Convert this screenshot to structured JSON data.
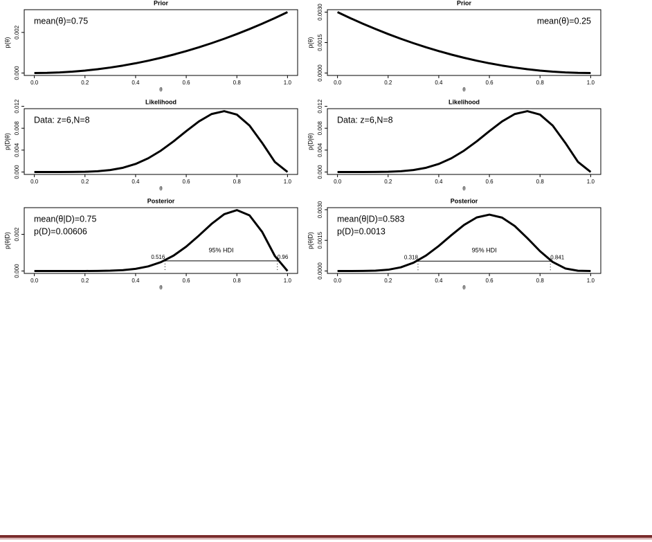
{
  "chart_data": [
    {
      "type": "line",
      "title": "Prior",
      "xlabel": "θ",
      "ylabel": "p(θ)",
      "annotations": [
        "mean(θ)=0.75"
      ],
      "annotation_corner": "left",
      "x": [
        0,
        0.05,
        0.1,
        0.15,
        0.2,
        0.25,
        0.3,
        0.35,
        0.4,
        0.45,
        0.5,
        0.55,
        0.6,
        0.65,
        0.7,
        0.75,
        0.8,
        0.85,
        0.9,
        0.95,
        1
      ],
      "values": [
        0,
        7.5e-06,
        3e-05,
        6.75e-05,
        0.00012,
        0.0001875,
        0.00027,
        0.0003675,
        0.00048,
        0.0006075,
        0.00075,
        0.0009075,
        0.00108,
        0.0012675,
        0.00147,
        0.0016875,
        0.00192,
        0.0021675,
        0.00243,
        0.0027075,
        0.003
      ],
      "color": "#000000",
      "xlim": [
        -0.04,
        1.04
      ],
      "ylim": [
        -0.00012,
        0.00312
      ],
      "xticks": [
        {
          "value": 0,
          "label": "0.0"
        },
        0.2,
        0.4,
        0.6,
        0.8,
        {
          "value": 1,
          "label": "1.0"
        }
      ],
      "yticks": [
        {
          "value": 0,
          "label": "0.000"
        },
        {
          "value": 0.002,
          "label": "0.002"
        }
      ]
    },
    {
      "type": "line",
      "title": "Prior",
      "xlabel": "θ",
      "ylabel": "p(θ)",
      "annotations": [
        "mean(θ)=0.25"
      ],
      "annotation_corner": "right",
      "x": [
        0,
        0.05,
        0.1,
        0.15,
        0.2,
        0.25,
        0.3,
        0.35,
        0.4,
        0.45,
        0.5,
        0.55,
        0.6,
        0.65,
        0.7,
        0.75,
        0.8,
        0.85,
        0.9,
        0.95,
        1
      ],
      "values": [
        0.003,
        0.0027075,
        0.00243,
        0.0021675,
        0.00192,
        0.0016875,
        0.00147,
        0.0012675,
        0.00108,
        0.0009075,
        0.00075,
        0.0006075,
        0.00048,
        0.0003675,
        0.00027,
        0.0001875,
        0.00012,
        6.75e-05,
        3e-05,
        7.5e-06,
        0
      ],
      "color": "#000000",
      "xlim": [
        -0.04,
        1.04
      ],
      "ylim": [
        -0.00012,
        0.00312
      ],
      "xticks": [
        {
          "value": 0,
          "label": "0.0"
        },
        0.2,
        0.4,
        0.6,
        0.8,
        {
          "value": 1,
          "label": "1.0"
        }
      ],
      "yticks": [
        {
          "value": 0,
          "label": "0.0000"
        },
        {
          "value": 0.0015,
          "label": "0.0015"
        },
        {
          "value": 0.003,
          "label": "0.0030"
        }
      ]
    },
    {
      "type": "line",
      "title": "Likelihood",
      "xlabel": "θ",
      "ylabel": "p(D|θ)",
      "annotations": [
        "Data: z=6,N=8"
      ],
      "annotation_corner": "left",
      "x": [
        0,
        0.05,
        0.1,
        0.15,
        0.2,
        0.25,
        0.3,
        0.35,
        0.4,
        0.45,
        0.5,
        0.55,
        0.6,
        0.65,
        0.7,
        0.75,
        0.8,
        0.85,
        0.9,
        0.95,
        1
      ],
      "values": [
        0,
        1.41e-08,
        8.1e-07,
        8.23e-06,
        4.096e-05,
        0.0001373,
        0.0003572,
        0.0007766,
        0.0014746,
        0.002512,
        0.003906,
        0.005605,
        0.007465,
        0.009239,
        0.010588,
        0.011124,
        0.010486,
        0.008486,
        0.005314,
        0.001838,
        0
      ],
      "color": "#000000",
      "xlim": [
        -0.04,
        1.04
      ],
      "ylim": [
        -0.000445,
        0.01157
      ],
      "xticks": [
        {
          "value": 0,
          "label": "0.0"
        },
        0.2,
        0.4,
        0.6,
        0.8,
        {
          "value": 1,
          "label": "1.0"
        }
      ],
      "yticks": [
        {
          "value": 0,
          "label": "0.000"
        },
        {
          "value": 0.004,
          "label": "0.004"
        },
        {
          "value": 0.008,
          "label": "0.008"
        },
        {
          "value": 0.012,
          "label": "0.012"
        }
      ]
    },
    {
      "type": "line",
      "title": "Likelihood",
      "xlabel": "θ",
      "ylabel": "p(D|θ)",
      "annotations": [
        "Data: z=6,N=8"
      ],
      "annotation_corner": "left",
      "x": [
        0,
        0.05,
        0.1,
        0.15,
        0.2,
        0.25,
        0.3,
        0.35,
        0.4,
        0.45,
        0.5,
        0.55,
        0.6,
        0.65,
        0.7,
        0.75,
        0.8,
        0.85,
        0.9,
        0.95,
        1
      ],
      "values": [
        0,
        1.41e-08,
        8.1e-07,
        8.23e-06,
        4.096e-05,
        0.0001373,
        0.0003572,
        0.0007766,
        0.0014746,
        0.002512,
        0.003906,
        0.005605,
        0.007465,
        0.009239,
        0.010588,
        0.011124,
        0.010486,
        0.008486,
        0.005314,
        0.001838,
        0
      ],
      "color": "#000000",
      "xlim": [
        -0.04,
        1.04
      ],
      "ylim": [
        -0.000445,
        0.01157
      ],
      "xticks": [
        {
          "value": 0,
          "label": "0.0"
        },
        0.2,
        0.4,
        0.6,
        0.8,
        {
          "value": 1,
          "label": "1.0"
        }
      ],
      "yticks": [
        {
          "value": 0,
          "label": "0.000"
        },
        {
          "value": 0.004,
          "label": "0.004"
        },
        {
          "value": 0.008,
          "label": "0.008"
        },
        {
          "value": 0.012,
          "label": "0.012"
        }
      ]
    },
    {
      "type": "line",
      "title": "Posterior",
      "xlabel": "θ",
      "ylabel": "p(θ|D)",
      "annotations": [
        "mean(θ|D)=0.75",
        "p(D)=0.00606"
      ],
      "annotation_corner": "left",
      "x": [
        0,
        0.05,
        0.1,
        0.15,
        0.2,
        0.25,
        0.3,
        0.35,
        0.4,
        0.45,
        0.5,
        0.55,
        0.6,
        0.65,
        0.7,
        0.75,
        0.8,
        0.85,
        0.9,
        0.95,
        1
      ],
      "values": [
        0,
        0,
        4e-09,
        9.2e-08,
        8.1e-07,
        4.25e-06,
        1.59e-05,
        4.71e-05,
        0.0001168,
        0.0002518,
        0.0004834,
        0.000839,
        0.00133,
        0.001932,
        0.002568,
        0.003097,
        0.003322,
        0.003035,
        0.002131,
        0.000821,
        0
      ],
      "color": "#000000",
      "xlim": [
        -0.04,
        1.04
      ],
      "ylim": [
        -0.000133,
        0.003455
      ],
      "xticks": [
        {
          "value": 0,
          "label": "0.0"
        },
        0.2,
        0.4,
        0.6,
        0.8,
        {
          "value": 1,
          "label": "1.0"
        }
      ],
      "yticks": [
        {
          "value": 0,
          "label": "0.000"
        },
        {
          "value": 0.002,
          "label": "0.002"
        }
      ],
      "hdi": {
        "label": "95% HDI",
        "low": 0.516,
        "high": 0.96,
        "height": 0.00055
      }
    },
    {
      "type": "line",
      "title": "Posterior",
      "xlabel": "θ",
      "ylabel": "p(θ|D)",
      "annotations": [
        "mean(θ|D)=0.583",
        "p(D)=0.0013"
      ],
      "annotation_corner": "left",
      "x": [
        0,
        0.05,
        0.1,
        0.15,
        0.2,
        0.25,
        0.3,
        0.35,
        0.4,
        0.45,
        0.5,
        0.55,
        0.6,
        0.65,
        0.7,
        0.75,
        0.8,
        0.85,
        0.9,
        0.95,
        1
      ],
      "values": [
        0,
        2.9e-08,
        1.52e-06,
        1.373e-05,
        6.06e-05,
        0.0001784,
        0.0004043,
        0.0007579,
        0.0012262,
        0.0017552,
        0.0022559,
        0.0026217,
        0.0027591,
        0.0026133,
        0.0022013,
        0.0016059,
        0.0009689,
        0.000441,
        0.0001228,
        1.06e-05,
        0
      ],
      "color": "#000000",
      "xlim": [
        -0.04,
        1.04
      ],
      "ylim": [
        -0.00012,
        0.0031
      ],
      "xticks": [
        {
          "value": 0,
          "label": "0.0"
        },
        0.2,
        0.4,
        0.6,
        0.8,
        {
          "value": 1,
          "label": "1.0"
        }
      ],
      "yticks": [
        {
          "value": 0,
          "label": "0.0000"
        },
        {
          "value": 0.0015,
          "label": "0.0015"
        },
        {
          "value": 0.003,
          "label": "0.0030"
        }
      ],
      "hdi": {
        "label": "95% HDI",
        "low": 0.318,
        "high": 0.841,
        "height": 0.00048
      }
    }
  ]
}
